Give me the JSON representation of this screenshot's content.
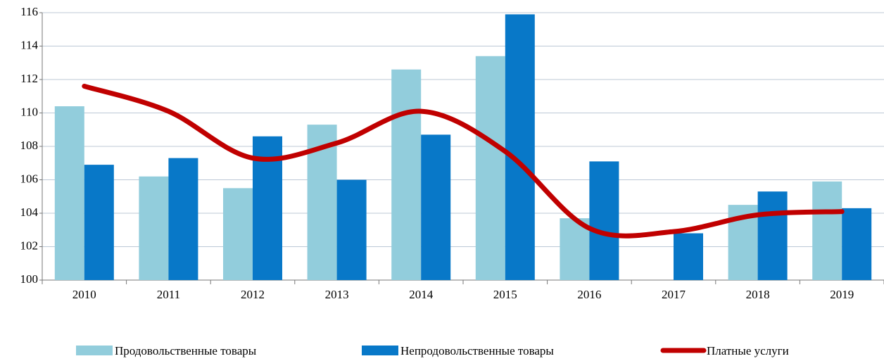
{
  "chart_data": {
    "type": "bar-line",
    "categories": [
      "2010",
      "2011",
      "2012",
      "2013",
      "2014",
      "2015",
      "2016",
      "2017",
      "2018",
      "2019"
    ],
    "series": [
      {
        "name": "Продовольственные товары",
        "type": "bar",
        "color": "#92cddc",
        "values": [
          110.4,
          106.2,
          105.5,
          109.3,
          112.6,
          113.4,
          103.7,
          100.0,
          104.5,
          105.9
        ]
      },
      {
        "name": "Непродовольственные товары",
        "type": "bar",
        "color": "#0878c8",
        "values": [
          106.9,
          107.3,
          108.6,
          106.0,
          108.7,
          115.9,
          107.1,
          102.8,
          105.3,
          104.3
        ]
      },
      {
        "name": "Платные услуги",
        "type": "line",
        "color": "#c00000",
        "values": [
          111.6,
          110.1,
          107.3,
          108.2,
          110.1,
          107.7,
          103.1,
          102.9,
          103.9,
          104.1
        ]
      }
    ],
    "ylim": [
      100,
      116
    ],
    "yticks": [
      100,
      102,
      104,
      106,
      108,
      110,
      112,
      114,
      116
    ],
    "grid": true,
    "legend": "bottom"
  }
}
